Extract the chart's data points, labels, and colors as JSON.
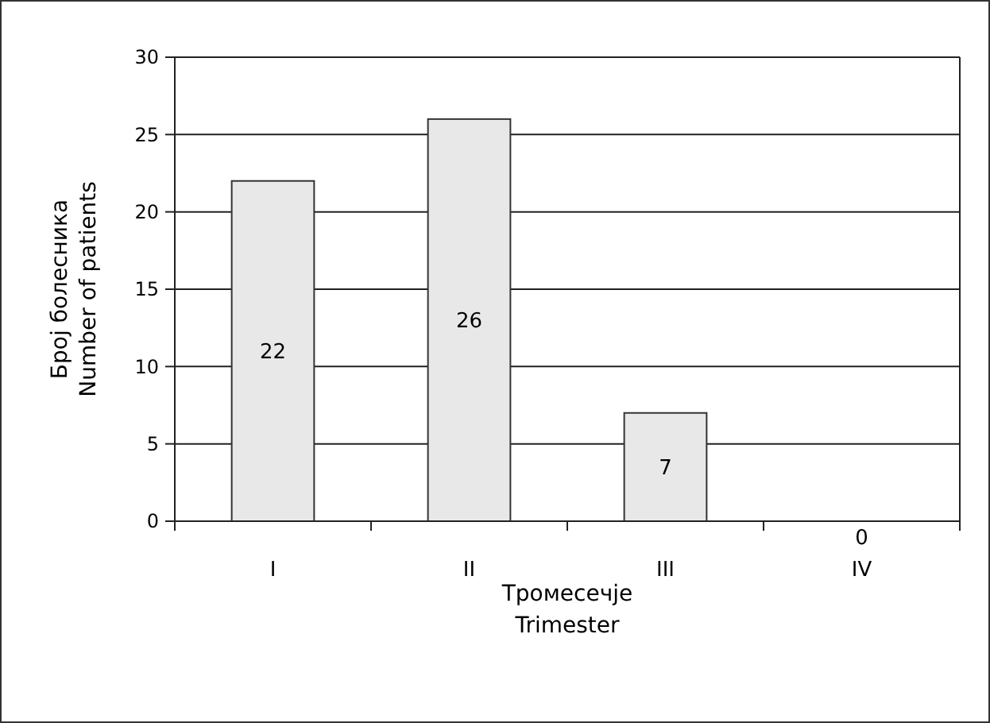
{
  "chart_data": {
    "type": "bar",
    "categories": [
      "I",
      "II",
      "III",
      "IV"
    ],
    "values": [
      22,
      26,
      7,
      0
    ],
    "color": "#e8e8e8",
    "ylim": [
      0,
      30
    ],
    "yticks": [
      0,
      5,
      10,
      15,
      20,
      25,
      30
    ],
    "grid": "y",
    "data_labels": true,
    "xlabel": "Тромесечје\nTrimester",
    "ylabel": "Број болесника\nNumber of patients"
  }
}
